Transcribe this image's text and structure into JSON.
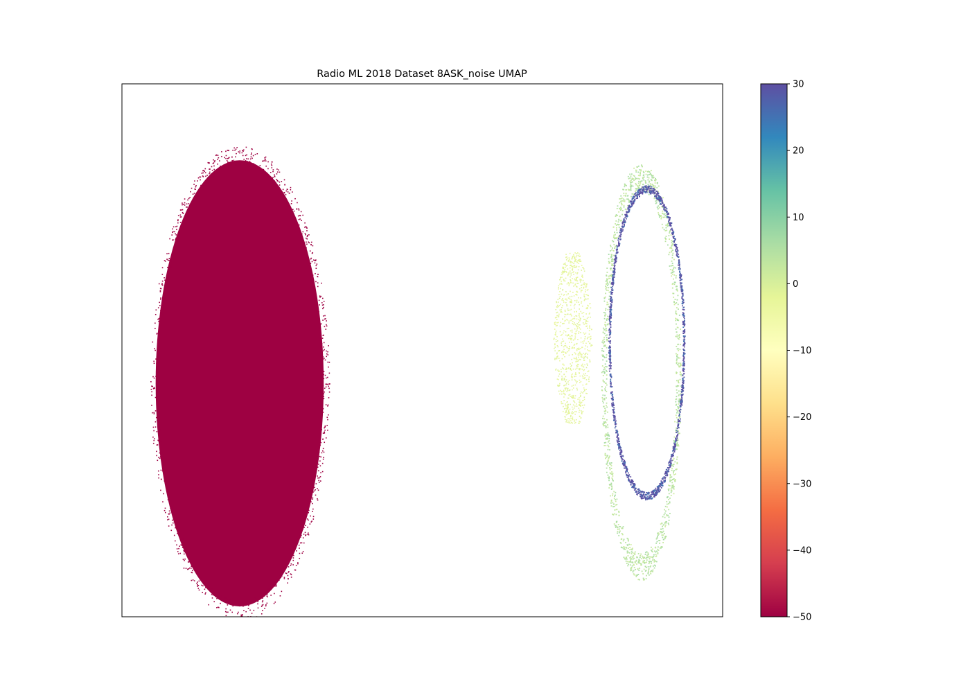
{
  "chart_data": {
    "type": "scatter",
    "title": "Radio ML 2018 Dataset 8ASK_noise UMAP",
    "xlabel": "",
    "ylabel": "",
    "x_ticks": "hidden",
    "y_ticks": "hidden",
    "colormap": "Spectral",
    "color_stops": [
      "#9e0142",
      "#d53e4f",
      "#f46d43",
      "#fdae61",
      "#fee08b",
      "#ffffbf",
      "#e6f598",
      "#abdda4",
      "#66c2a5",
      "#3288bd",
      "#5e4fa2"
    ],
    "colorbar": {
      "label": "",
      "range": [
        -50,
        30
      ],
      "ticks": [
        30,
        20,
        10,
        0,
        -10,
        -20,
        -30,
        -40,
        -50
      ],
      "tick_labels": [
        "30",
        "20",
        "10",
        "0",
        "−10",
        "−20",
        "−30",
        "−40",
        "−50"
      ]
    },
    "xlim": [
      0,
      100
    ],
    "ylim": [
      0,
      100
    ],
    "clusters": [
      {
        "name": "",
        "shape": "filled-ellipse",
        "center": [
          19.6,
          43.8
        ],
        "radius": [
          14.2,
          42.5
        ],
        "color_value": -50
      },
      {
        "name": "",
        "shape": "fan",
        "center": [
          75.0,
          52.4
        ],
        "radius": [
          3.2,
          16.0
        ],
        "color_value": -2
      },
      {
        "name": "",
        "shape": "ring",
        "center": [
          86.4,
          46.0
        ],
        "radius": [
          6.2,
          36.5
        ],
        "color_value": 4
      },
      {
        "name": "",
        "shape": "ring",
        "center": [
          87.3,
          51.5
        ],
        "radius": [
          6.2,
          28.8
        ],
        "color_value": 30
      }
    ]
  }
}
